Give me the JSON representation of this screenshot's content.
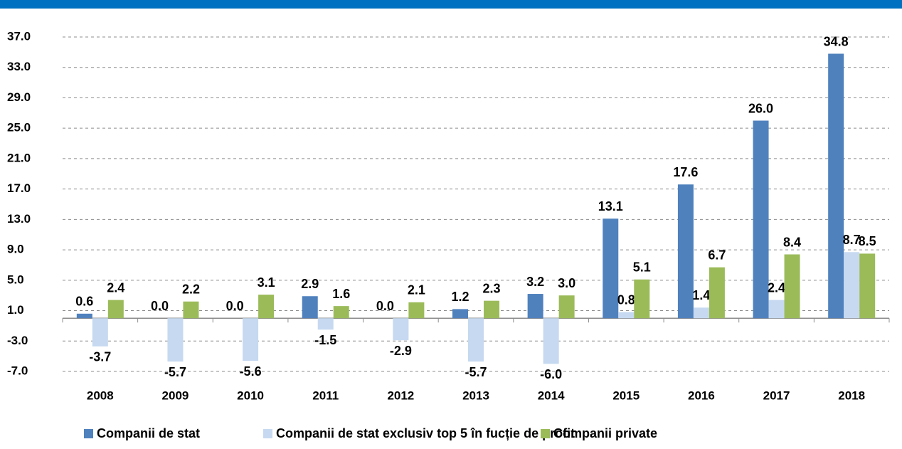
{
  "chart_data": {
    "type": "bar",
    "categories": [
      "2008",
      "2009",
      "2010",
      "2011",
      "2012",
      "2013",
      "2014",
      "2015",
      "2016",
      "2017",
      "2018"
    ],
    "series": [
      {
        "name": "Companii de stat",
        "color": "#4f81bd",
        "values": [
          0.6,
          0,
          0,
          2.9,
          0,
          1.2,
          3.2,
          13.1,
          17.6,
          26.0,
          34.8
        ],
        "value_labels": [
          "0.6",
          "0.0",
          "0.0",
          "2.9",
          "0.0",
          "1.2",
          "3.2",
          "13.1",
          "17.6",
          "26.0",
          "34.8"
        ]
      },
      {
        "name": "Companii de stat exclusiv top 5 în fucție de profit",
        "color": "#c6d9f1",
        "values": [
          -3.7,
          -5.7,
          -5.6,
          -1.5,
          -2.9,
          -5.7,
          -6.0,
          0.8,
          1.4,
          2.4,
          8.7
        ],
        "value_labels": [
          "-3.7",
          "-5.7",
          "-5.6",
          "-1.5",
          "-2.9",
          "-5.7",
          "-6.0",
          "0.8",
          "1.4",
          "2.4",
          "8.7"
        ]
      },
      {
        "name": "Companii private",
        "color": "#9bbb59",
        "values": [
          2.4,
          2.2,
          3.1,
          1.6,
          2.1,
          2.3,
          3.0,
          5.1,
          6.7,
          8.4,
          8.5
        ],
        "value_labels": [
          "2.4",
          "2.2",
          "3.1",
          "1.6",
          "2.1",
          "2.3",
          "3.0",
          "5.1",
          "6.7",
          "8.4",
          "8.5"
        ]
      }
    ],
    "ylim": [
      -7,
      37
    ],
    "yticks": [
      {
        "value": -7,
        "label": "-7.0"
      },
      {
        "value": -3,
        "label": "-3.0"
      },
      {
        "value": 1,
        "label": "1.0"
      },
      {
        "value": 5,
        "label": "5.0"
      },
      {
        "value": 9,
        "label": "9.0"
      },
      {
        "value": 13,
        "label": "13.0"
      },
      {
        "value": 17,
        "label": "17.0"
      },
      {
        "value": 21,
        "label": "21.0"
      },
      {
        "value": 25,
        "label": "25.0"
      },
      {
        "value": 29,
        "label": "29.0"
      },
      {
        "value": 33,
        "label": "33.0"
      },
      {
        "value": 37,
        "label": "37.0"
      }
    ],
    "grid": true,
    "legend": "bottom"
  }
}
